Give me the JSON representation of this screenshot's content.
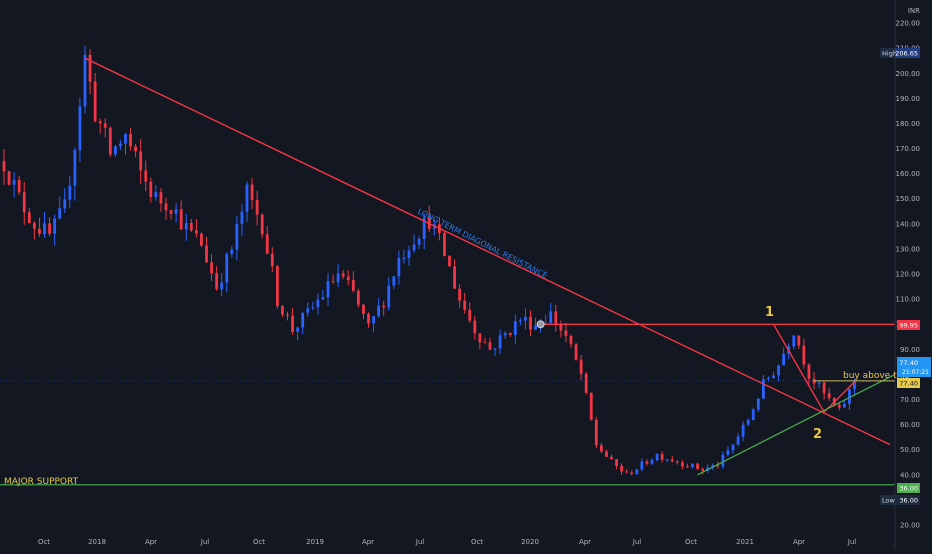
{
  "chart_data": {
    "type": "candlestick",
    "currency": "INR",
    "y_ticks": [
      20,
      30,
      40,
      50,
      60,
      70,
      80,
      90,
      100,
      110,
      120,
      130,
      140,
      150,
      160,
      170,
      180,
      190,
      200,
      210,
      220
    ],
    "y_tick_labels": [
      "20.00",
      "30.00",
      "40.00",
      "50.00",
      "60.00",
      "70.00",
      "80.00",
      "90.00",
      "100.00",
      "110.00",
      "120.00",
      "130.00",
      "140.00",
      "150.00",
      "160.00",
      "170.00",
      "180.00",
      "190.00",
      "200.00",
      "210.00",
      "220.00"
    ],
    "ylim": [
      18,
      226
    ],
    "x_ticks": [
      "Oct",
      "2018",
      "Apr",
      "Jul",
      "Oct",
      "2019",
      "Apr",
      "Jul",
      "Oct",
      "2020",
      "Apr",
      "Jul",
      "Oct",
      "2021",
      "Apr",
      "Jul"
    ],
    "price_path": [
      [
        0,
        165
      ],
      [
        3,
        150
      ],
      [
        6,
        140
      ],
      [
        9,
        135
      ],
      [
        12,
        146
      ],
      [
        14,
        172
      ],
      [
        16,
        206
      ],
      [
        18,
        185
      ],
      [
        21,
        168
      ],
      [
        24,
        175
      ],
      [
        27,
        160
      ],
      [
        30,
        150
      ],
      [
        33,
        148
      ],
      [
        36,
        138
      ],
      [
        39,
        132
      ],
      [
        42,
        115
      ],
      [
        45,
        130
      ],
      [
        48,
        152
      ],
      [
        51,
        140
      ],
      [
        54,
        110
      ],
      [
        57,
        98
      ],
      [
        60,
        104
      ],
      [
        63,
        112
      ],
      [
        66,
        120
      ],
      [
        69,
        112
      ],
      [
        72,
        98
      ],
      [
        75,
        110
      ],
      [
        78,
        126
      ],
      [
        81,
        135
      ],
      [
        84,
        142
      ],
      [
        87,
        128
      ],
      [
        90,
        110
      ],
      [
        93,
        98
      ],
      [
        96,
        90
      ],
      [
        99,
        96
      ],
      [
        102,
        102
      ],
      [
        105,
        100
      ],
      [
        108,
        104
      ],
      [
        111,
        95
      ],
      [
        114,
        80
      ],
      [
        117,
        52
      ],
      [
        120,
        45
      ],
      [
        123,
        40
      ],
      [
        126,
        44
      ],
      [
        129,
        48
      ],
      [
        132,
        46
      ],
      [
        135,
        44
      ],
      [
        138,
        42
      ],
      [
        141,
        44
      ],
      [
        144,
        52
      ],
      [
        147,
        62
      ],
      [
        150,
        76
      ],
      [
        153,
        84
      ],
      [
        156,
        98
      ],
      [
        159,
        80
      ],
      [
        162,
        72
      ],
      [
        165,
        65
      ],
      [
        168,
        77
      ]
    ],
    "annotations": {
      "resistance_label": "LONG TERM DIAGONAL RESISTANCE",
      "support_label": "MAJOR SUPPORT",
      "buy_label": "buy above this",
      "wave_1": "1",
      "wave_2": "2"
    },
    "lines": {
      "diagonal_resistance": {
        "from": [
          16,
          206
        ],
        "to": [
          175,
          52
        ],
        "color": "#f23645"
      },
      "horizontal_resistance": {
        "value": 99.95,
        "from_x": 106,
        "color": "#f23645"
      },
      "triangle": {
        "points": [
          [
            152,
            99.95
          ],
          [
            162,
            65
          ],
          [
            168,
            77
          ]
        ],
        "color": "#f23645"
      },
      "green_trend": {
        "from": [
          137,
          40
        ],
        "to": [
          176,
          80
        ],
        "color": "#4caf50"
      },
      "support": {
        "value": 36.0,
        "color": "#4caf50"
      },
      "buy_line": {
        "value": 77.4,
        "from_x": 160,
        "color": "#e6c84a"
      }
    },
    "price_labels": {
      "high": {
        "text": "High",
        "value": "206.65"
      },
      "low": {
        "text": "Low",
        "value": "36.00"
      },
      "resistance": "99.95",
      "buy": "77.40",
      "support": "36.00",
      "last_price": "77.40",
      "last_time": "21:07:21"
    },
    "colors": {
      "up": "#2962ff",
      "down": "#f23645",
      "background": "#131722",
      "grid": "#1e222d"
    }
  }
}
